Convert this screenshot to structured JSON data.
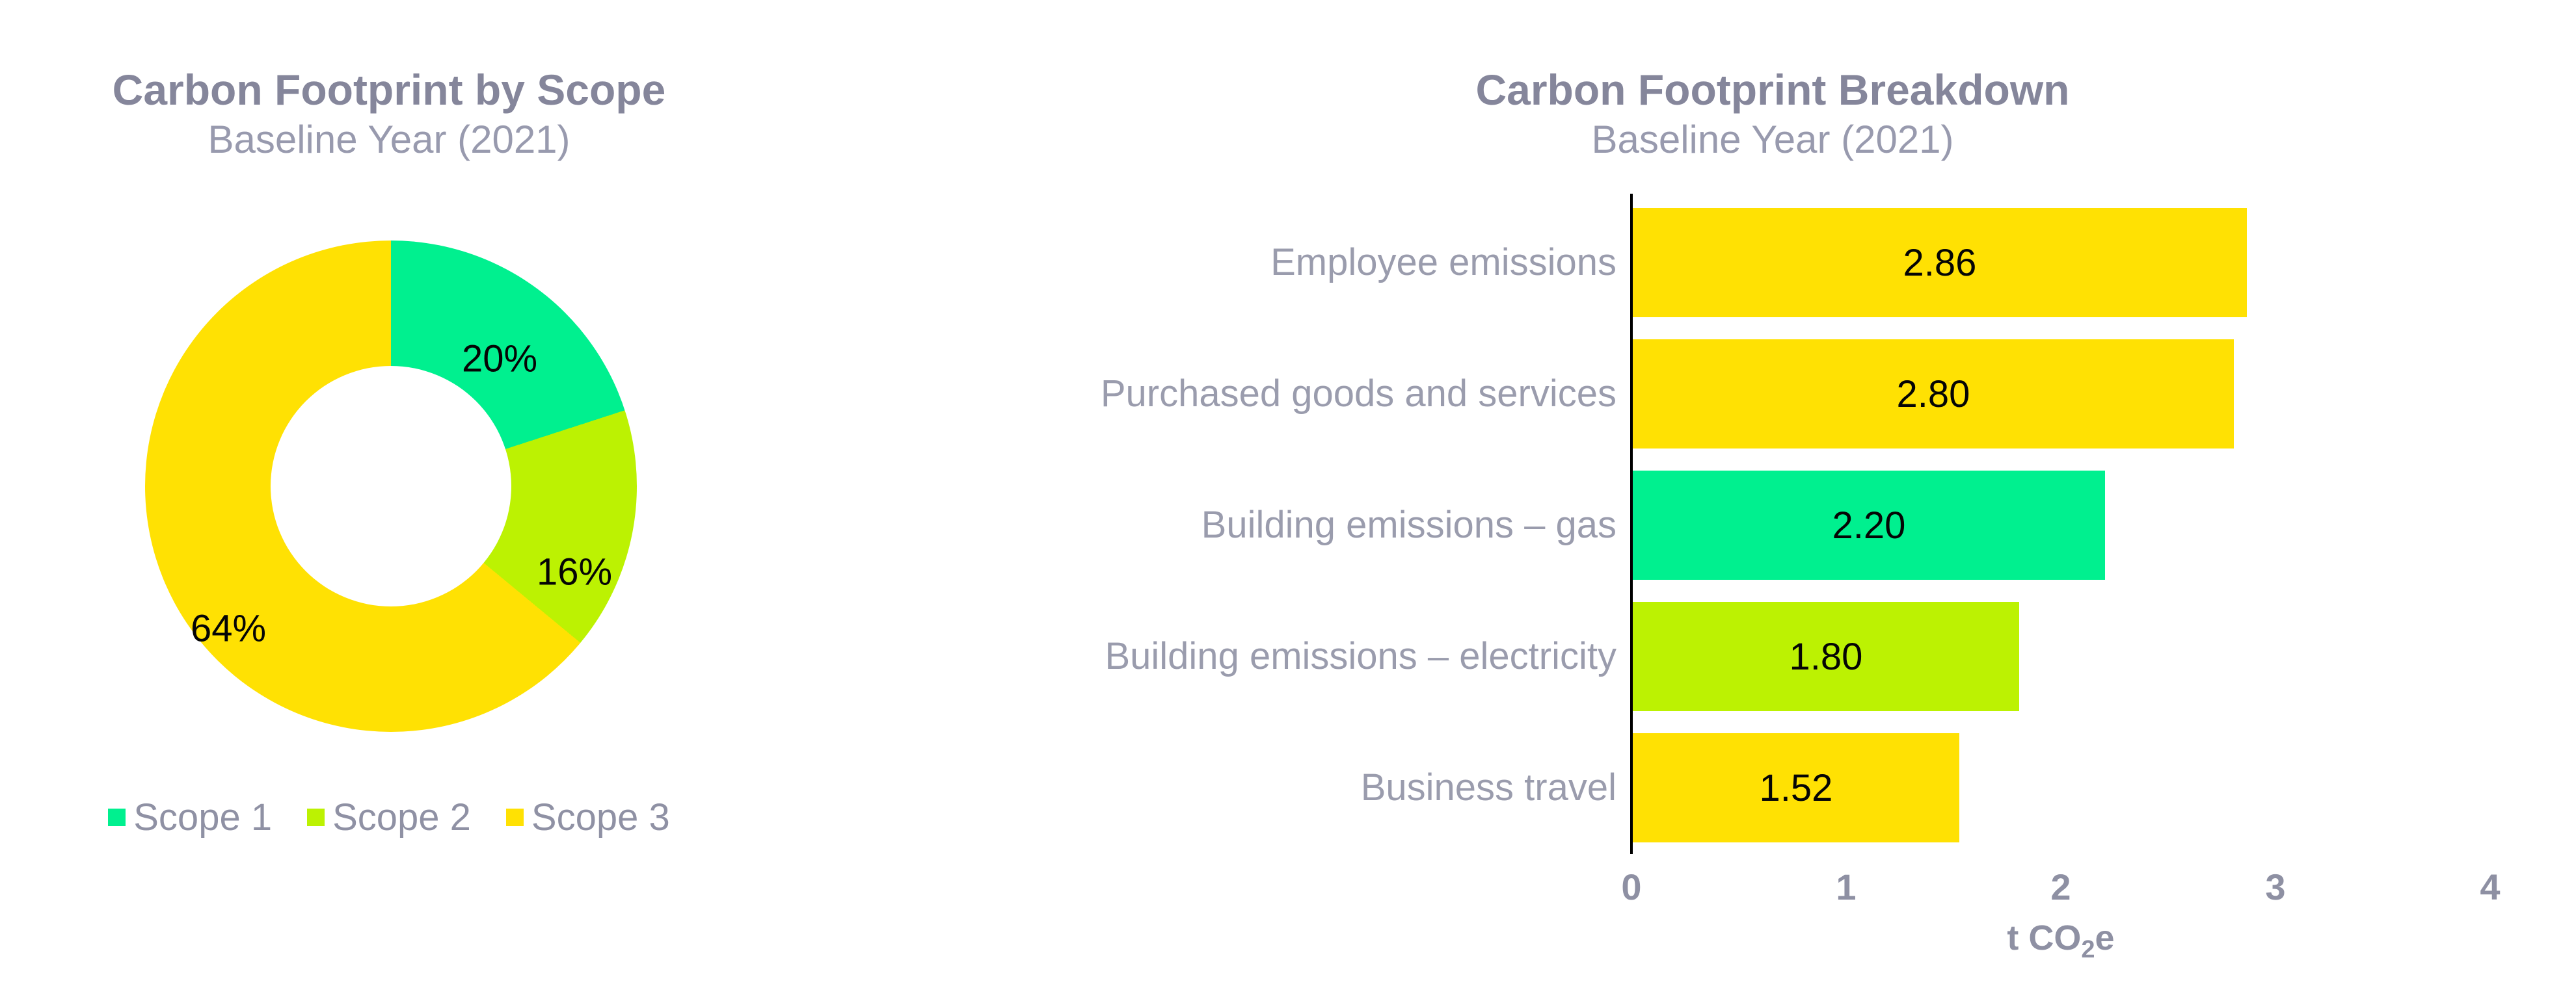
{
  "palette": {
    "scope1_green": "#00F08F",
    "scope2_lime": "#BCF202",
    "scope3_yellow": "#FFE103",
    "title_gray": "#85869B",
    "label_gray": "#9A9CAD",
    "tick_gray": "#8E90A3",
    "value_black": "#050505",
    "axis_black": "#000000"
  },
  "chart_data": [
    {
      "type": "pie",
      "subtype": "donut",
      "title": "Carbon Footprint by Scope",
      "subtitle": "Baseline Year (2021)",
      "start_angle_deg": 0,
      "direction": "clockwise",
      "slices": [
        {
          "label": "Scope 1",
          "value_pct": 20,
          "pct_label": "20%",
          "color": "scope1_green"
        },
        {
          "label": "Scope 2",
          "value_pct": 16,
          "pct_label": "16%",
          "color": "scope2_lime"
        },
        {
          "label": "Scope 3",
          "value_pct": 64,
          "pct_label": "64%",
          "color": "scope3_yellow"
        }
      ],
      "legend_position": "bottom"
    },
    {
      "type": "bar",
      "subtype": "horizontal",
      "title": "Carbon Footprint Breakdown",
      "subtitle": "Baseline Year (2021)",
      "categories": [
        "Employee emissions",
        "Purchased goods and services",
        "Building emissions – gas",
        "Building emissions – electricity",
        "Business travel"
      ],
      "values": [
        2.86,
        2.8,
        2.2,
        1.8,
        1.52
      ],
      "value_labels": [
        "2.86",
        "2.80",
        "2.20",
        "1.80",
        "1.52"
      ],
      "bar_colors": [
        "scope3_yellow",
        "scope3_yellow",
        "scope1_green",
        "scope2_lime",
        "scope3_yellow"
      ],
      "xlim": [
        0,
        4
      ],
      "xticks": [
        "0",
        "1",
        "2",
        "3",
        "4"
      ],
      "xlabel_pre": "t CO",
      "xlabel_sub": "2",
      "xlabel_post": "e",
      "grid": false,
      "legend_position": "none"
    }
  ]
}
